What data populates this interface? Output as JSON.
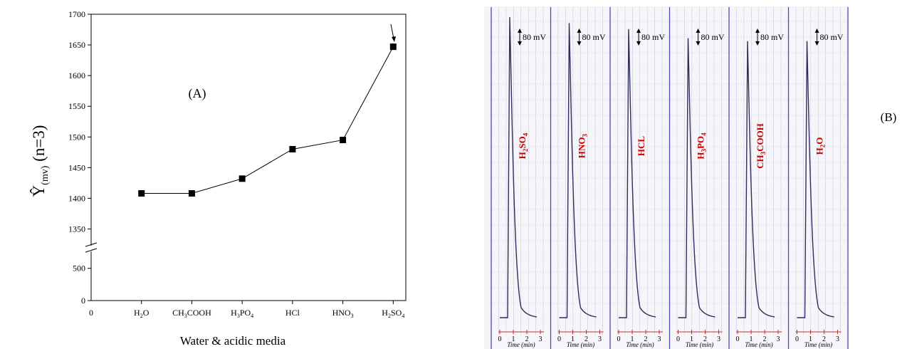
{
  "chart_data": [
    {
      "type": "line",
      "panel_label": "(A)",
      "xlabel": "Water & acidic media",
      "ylabel_main": "Ŷ",
      "ylabel_sub": "(mv)",
      "ylabel_tail": " (n=3)",
      "x_zero_label": "0",
      "categories": [
        {
          "main": "H",
          "sub": "2",
          "tail": "O"
        },
        {
          "main": "CH",
          "sub": "3",
          "tail": "COOH"
        },
        {
          "main": "H",
          "sub": "3",
          "tail": "PO",
          "sub2": "4"
        },
        {
          "main": "HCl"
        },
        {
          "main": "HNO",
          "sub": "3"
        },
        {
          "main": "H",
          "sub": "2",
          "tail": "SO",
          "sub2": "4"
        }
      ],
      "series": [
        {
          "values": [
            1408,
            1408,
            1432,
            1480,
            1495,
            1647
          ]
        }
      ],
      "y_upper_ticks": [
        1350,
        1400,
        1450,
        1500,
        1550,
        1600,
        1650,
        1700
      ],
      "y_lower_ticks": [
        0,
        500
      ],
      "y_upper_range": [
        1325,
        1700
      ],
      "y_lower_range": [
        0,
        740
      ],
      "axis_break": true,
      "highlight_arrow_on": "H2SO4",
      "grid": false
    },
    {
      "type": "line",
      "panel_label": "(B)",
      "scale_label": "80 mV",
      "xlabel": "Time (min)",
      "x_ticks": [
        "0",
        "1",
        "2",
        "3"
      ],
      "strips": [
        {
          "label_main": "H",
          "label_sub": "2",
          "label_tail": "SO",
          "label_sub2": "4",
          "peak_relative": 1.0
        },
        {
          "label_main": "HNO",
          "label_sub": "3",
          "peak_relative": 0.98
        },
        {
          "label_main": "HCL",
          "peak_relative": 0.96
        },
        {
          "label_main": "H",
          "label_sub": "3",
          "label_tail": "PO",
          "label_sub2": "4",
          "peak_relative": 0.93
        },
        {
          "label_main": "CH",
          "label_sub": "3",
          "label_tail": "COOH",
          "peak_relative": 0.92
        },
        {
          "label_main": "H",
          "label_sub": "2",
          "label_tail": "O",
          "peak_relative": 0.92
        }
      ],
      "colors": {
        "trace": "#2e2e5e",
        "label": "#cc0000",
        "frame": "#4a4ab8",
        "grid": "#c9cbe0"
      },
      "grid": true
    }
  ]
}
